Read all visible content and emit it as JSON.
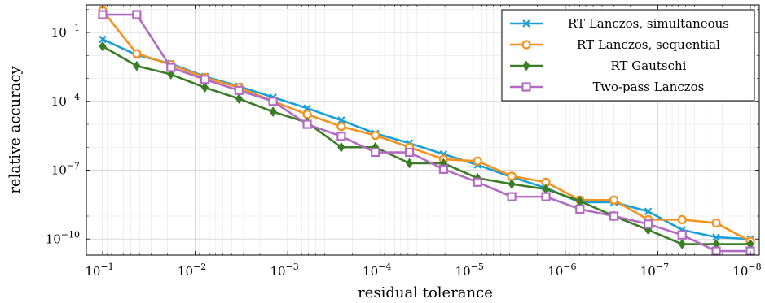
{
  "chart_data": {
    "type": "line",
    "xlabel": "residual tolerance",
    "ylabel": "relative accuracy",
    "x_scale": "log",
    "x_reversed": true,
    "y_scale": "log",
    "xlim": [
      0.15,
      8e-09
    ],
    "ylim": [
      2e-11,
      1.6
    ],
    "grid": true,
    "legend_position": "top-right",
    "x_ticks": [
      {
        "value": 0.1,
        "base": "10",
        "exp": "−1"
      },
      {
        "value": 0.01,
        "base": "10",
        "exp": "−2"
      },
      {
        "value": 0.001,
        "base": "10",
        "exp": "−3"
      },
      {
        "value": 0.0001,
        "base": "10",
        "exp": "−4"
      },
      {
        "value": 1e-05,
        "base": "10",
        "exp": "−5"
      },
      {
        "value": 1e-06,
        "base": "10",
        "exp": "−6"
      },
      {
        "value": 1e-07,
        "base": "10",
        "exp": "−7"
      },
      {
        "value": 1e-08,
        "base": "10",
        "exp": "−8"
      }
    ],
    "y_ticks": [
      {
        "value": 0.1,
        "base": "10",
        "exp": "−1"
      },
      {
        "value": 0.0001,
        "base": "10",
        "exp": "−4"
      },
      {
        "value": 1e-07,
        "base": "10",
        "exp": "−7"
      },
      {
        "value": 1e-10,
        "base": "10",
        "exp": "−10"
      }
    ],
    "x": [
      0.1,
      0.0428,
      0.0183,
      0.00785,
      0.00336,
      0.00144,
      0.000616,
      0.000264,
      0.000113,
      4.83e-05,
      2.07e-05,
      8.86e-06,
      3.79e-06,
      1.62e-06,
      6.95e-07,
      2.98e-07,
      1.27e-07,
      5.46e-08,
      2.34e-08,
      1e-08
    ],
    "series": [
      {
        "name": "RT Lanczos, simultaneous",
        "color": "#1a9fd9",
        "marker": "x",
        "values": [
          0.05,
          0.0105,
          0.0044,
          0.0012,
          0.00045,
          0.00015,
          5e-05,
          1.5e-05,
          4e-06,
          1.5e-06,
          5e-07,
          1.7e-07,
          5e-08,
          1.7e-08,
          4e-09,
          4e-09,
          1.6e-09,
          2.5e-10,
          1.2e-10,
          1e-10
        ]
      },
      {
        "name": "RT Lanczos, sequential",
        "color": "#f5921e",
        "marker": "circle",
        "values": [
          0.9,
          0.012,
          0.004,
          0.0011,
          0.0004,
          0.0001,
          2.7e-05,
          8e-06,
          3.3e-06,
          1e-06,
          3e-07,
          2.5e-07,
          5.5e-08,
          3e-08,
          5e-09,
          5e-09,
          7e-10,
          7e-10,
          5e-10,
          8e-11
        ]
      },
      {
        "name": "RT Gautschi",
        "color": "#3a7d26",
        "marker": "diamond",
        "values": [
          0.025,
          0.0035,
          0.0015,
          0.0004,
          0.00013,
          3.5e-05,
          1.2e-05,
          1e-06,
          1e-06,
          2e-07,
          2e-07,
          4.5e-08,
          2.5e-08,
          1.5e-08,
          4.5e-09,
          1e-09,
          2.5e-10,
          6e-11,
          6e-11,
          6e-11
        ]
      },
      {
        "name": "Two-pass Lanczos",
        "color": "#b36bc2",
        "marker": "square",
        "values": [
          0.6,
          0.6,
          0.003,
          0.0009,
          0.0003,
          0.0001,
          1e-05,
          3e-06,
          6e-07,
          6e-07,
          1.1e-07,
          3e-08,
          7e-09,
          7e-09,
          2e-09,
          1e-09,
          4.5e-10,
          1.5e-10,
          3e-11,
          3e-11
        ]
      }
    ]
  }
}
